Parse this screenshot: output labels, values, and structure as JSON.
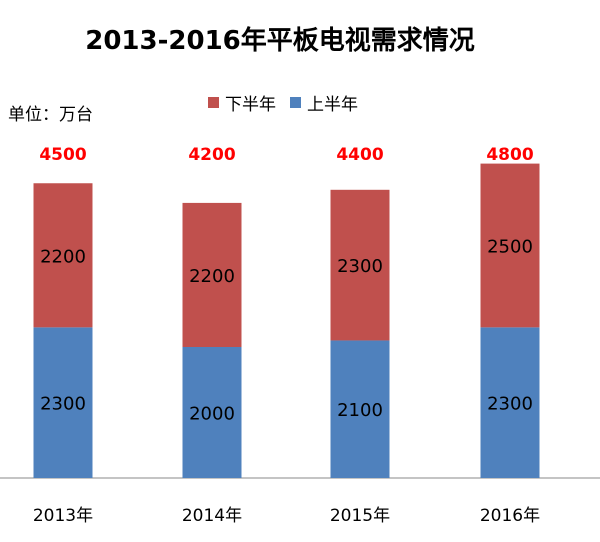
{
  "chart_data": {
    "type": "bar",
    "stacked": true,
    "title": "2013-2016年平板电视需求情况",
    "unit_label": "单位：万台",
    "categories": [
      "2013年",
      "2014年",
      "2015年",
      "2016年"
    ],
    "series": [
      {
        "name": "上半年",
        "values": [
          2300,
          2000,
          2100,
          2300
        ],
        "color": "#4f81bd"
      },
      {
        "name": "下半年",
        "values": [
          2200,
          2200,
          2300,
          2500
        ],
        "color": "#c0504d"
      }
    ],
    "totals": [
      "4500",
      "4200",
      "4400",
      "4800"
    ],
    "total_label_color": "#ff0000",
    "legend_order": [
      "下半年",
      "上半年"
    ],
    "legend_position": "top",
    "ylim": [
      0,
      5500
    ],
    "grid": false
  }
}
